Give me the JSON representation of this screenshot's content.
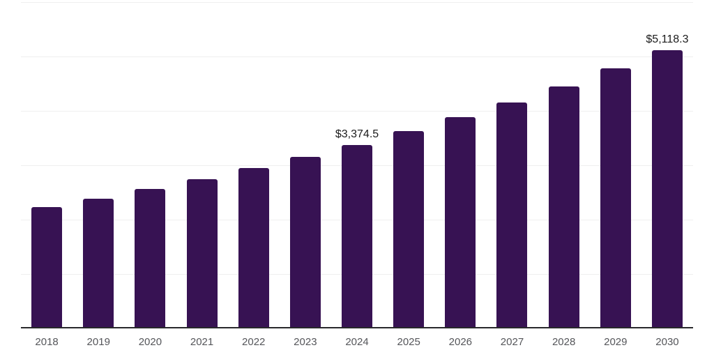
{
  "chart_data": {
    "type": "bar",
    "title": "",
    "xlabel": "",
    "ylabel": "",
    "categories": [
      "2018",
      "2019",
      "2020",
      "2021",
      "2022",
      "2023",
      "2024",
      "2025",
      "2026",
      "2027",
      "2028",
      "2029",
      "2030"
    ],
    "values": [
      2230,
      2390,
      2570,
      2750,
      2945,
      3160,
      3374.5,
      3625,
      3880,
      4160,
      4455,
      4785,
      5118.3
    ],
    "annotations": [
      {
        "category": "2024",
        "label": "$3,374.5"
      },
      {
        "category": "2030",
        "label": "$5,118.3"
      }
    ],
    "ylim": [
      0,
      6000
    ],
    "gridline_step": 1000,
    "grid": "horizontal-only",
    "legend": "none",
    "y_tick_labels_visible": false,
    "colors": {
      "bar": "#371253",
      "gridline": "#efefef",
      "axis_line": "#28282b",
      "tick_label": "#55565a",
      "annotation": "#1a1a1a",
      "background": "#ffffff"
    }
  }
}
